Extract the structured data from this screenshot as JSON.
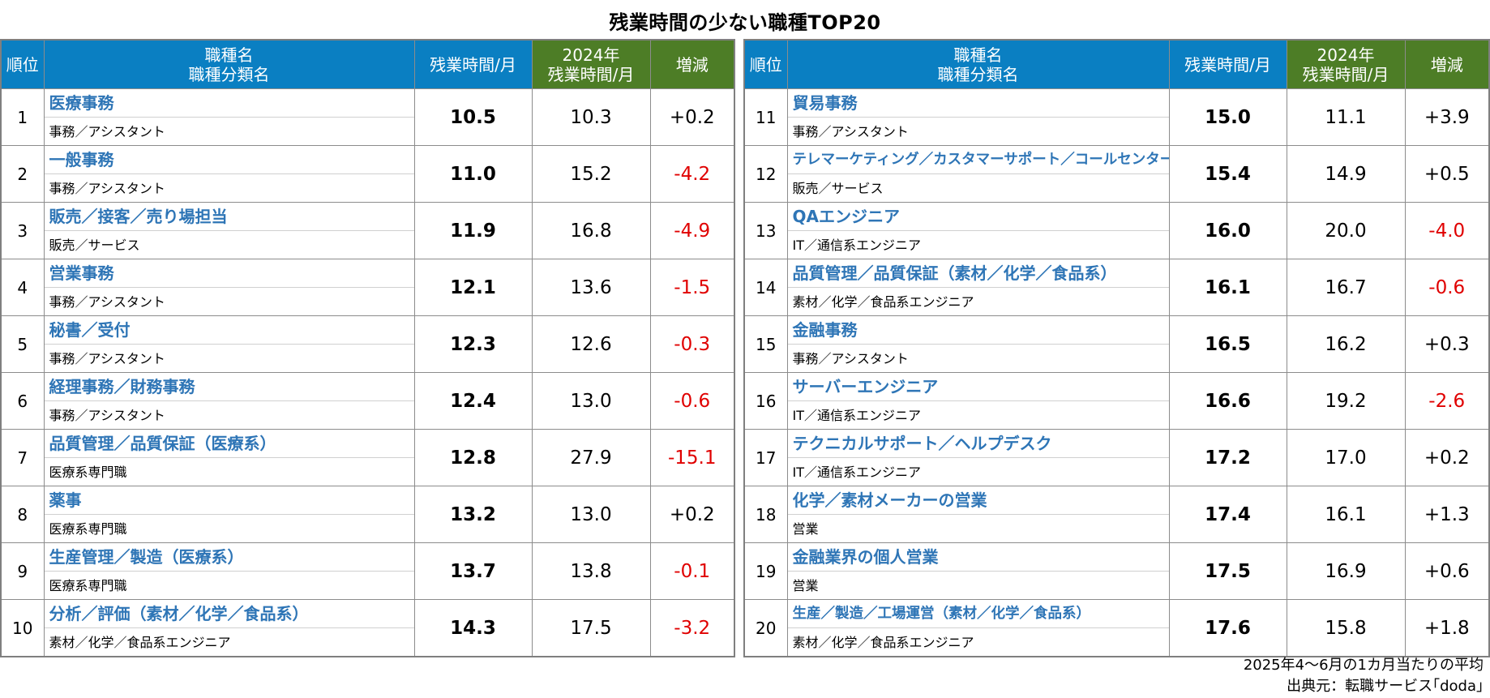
{
  "title": "残業時間の少ない職種TOP20",
  "headers": {
    "rank": "順位",
    "job_line1": "職種名",
    "job_line2": "職種分類名",
    "current": "残業時間/月",
    "prev_line1": "2024年",
    "prev_line2": "残業時間/月",
    "change": "増減"
  },
  "colors": {
    "header_blue": "#0a7fc2",
    "header_green": "#4d7d26",
    "job_name": "#2e75b6",
    "negative": "#e00000"
  },
  "chart_data": {
    "type": "table",
    "columns": [
      "順位",
      "職種名",
      "職種分類名",
      "残業時間/月",
      "2024年 残業時間/月",
      "増減"
    ],
    "rows": [
      {
        "rank": "1",
        "job": "医療事務",
        "category": "事務／アシスタント",
        "hours": "10.5",
        "prev": "10.3",
        "change": "+0.2"
      },
      {
        "rank": "2",
        "job": "一般事務",
        "category": "事務／アシスタント",
        "hours": "11.0",
        "prev": "15.2",
        "change": "-4.2"
      },
      {
        "rank": "3",
        "job": "販売／接客／売り場担当",
        "category": "販売／サービス",
        "hours": "11.9",
        "prev": "16.8",
        "change": "-4.9"
      },
      {
        "rank": "4",
        "job": "営業事務",
        "category": "事務／アシスタント",
        "hours": "12.1",
        "prev": "13.6",
        "change": "-1.5"
      },
      {
        "rank": "5",
        "job": "秘書／受付",
        "category": "事務／アシスタント",
        "hours": "12.3",
        "prev": "12.6",
        "change": "-0.3"
      },
      {
        "rank": "6",
        "job": "経理事務／財務事務",
        "category": "事務／アシスタント",
        "hours": "12.4",
        "prev": "13.0",
        "change": "-0.6"
      },
      {
        "rank": "7",
        "job": "品質管理／品質保証（医療系）",
        "category": "医療系専門職",
        "hours": "12.8",
        "prev": "27.9",
        "change": "-15.1"
      },
      {
        "rank": "8",
        "job": "薬事",
        "category": "医療系専門職",
        "hours": "13.2",
        "prev": "13.0",
        "change": "+0.2"
      },
      {
        "rank": "9",
        "job": "生産管理／製造（医療系）",
        "category": "医療系専門職",
        "hours": "13.7",
        "prev": "13.8",
        "change": "-0.1"
      },
      {
        "rank": "10",
        "job": "分析／評価（素材／化学／食品系）",
        "category": "素材／化学／食品系エンジニア",
        "hours": "14.3",
        "prev": "17.5",
        "change": "-3.2"
      },
      {
        "rank": "11",
        "job": "貿易事務",
        "category": "事務／アシスタント",
        "hours": "15.0",
        "prev": "11.1",
        "change": "+3.9"
      },
      {
        "rank": "12",
        "job": "テレマーケティング／カスタマーサポート／コールセンター",
        "category": "販売／サービス",
        "hours": "15.4",
        "prev": "14.9",
        "change": "+0.5"
      },
      {
        "rank": "13",
        "job": "QAエンジニア",
        "category": "IT／通信系エンジニア",
        "hours": "16.0",
        "prev": "20.0",
        "change": "-4.0"
      },
      {
        "rank": "14",
        "job": "品質管理／品質保証（素材／化学／食品系）",
        "category": "素材／化学／食品系エンジニア",
        "hours": "16.1",
        "prev": "16.7",
        "change": "-0.6"
      },
      {
        "rank": "15",
        "job": "金融事務",
        "category": "事務／アシスタント",
        "hours": "16.5",
        "prev": "16.2",
        "change": "+0.3"
      },
      {
        "rank": "16",
        "job": "サーバーエンジニア",
        "category": "IT／通信系エンジニア",
        "hours": "16.6",
        "prev": "19.2",
        "change": "-2.6"
      },
      {
        "rank": "17",
        "job": "テクニカルサポート／ヘルプデスク",
        "category": "IT／通信系エンジニア",
        "hours": "17.2",
        "prev": "17.0",
        "change": "+0.2"
      },
      {
        "rank": "18",
        "job": "化学／素材メーカーの営業",
        "category": "営業",
        "hours": "17.4",
        "prev": "16.1",
        "change": "+1.3"
      },
      {
        "rank": "19",
        "job": "金融業界の個人営業",
        "category": "営業",
        "hours": "17.5",
        "prev": "16.9",
        "change": "+0.6"
      },
      {
        "rank": "20",
        "job": "生産／製造／工場運営（素材／化学／食品系）",
        "category": "素材／化学／食品系エンジニア",
        "hours": "17.6",
        "prev": "15.8",
        "change": "+1.8"
      }
    ]
  },
  "footer": {
    "note": "2025年4～6月の1カ月当たりの平均",
    "source": "出典元：転職サービス｢doda｣"
  }
}
